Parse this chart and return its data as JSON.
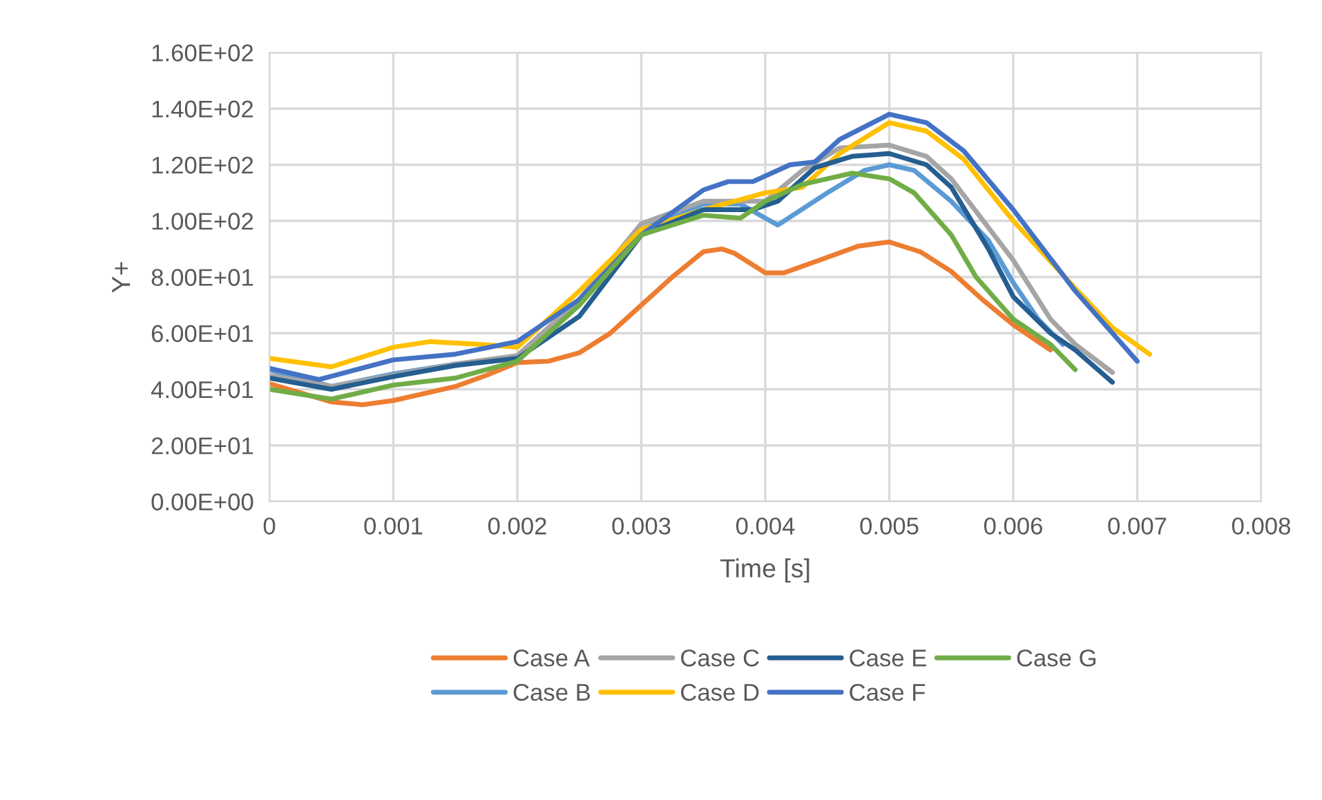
{
  "chart_data": {
    "type": "line",
    "xlabel": "Time [s]",
    "ylabel": "Y+",
    "xlim": [
      0,
      0.008
    ],
    "ylim": [
      0,
      160
    ],
    "xticks": [
      0,
      0.001,
      0.002,
      0.003,
      0.004,
      0.005,
      0.006,
      0.007,
      0.008
    ],
    "yticks": [
      {
        "value": 0,
        "label": "0.00E+00"
      },
      {
        "value": 20,
        "label": "2.00E+01"
      },
      {
        "value": 40,
        "label": "4.00E+01"
      },
      {
        "value": 60,
        "label": "6.00E+01"
      },
      {
        "value": 80,
        "label": "8.00E+01"
      },
      {
        "value": 100,
        "label": "1.00E+02"
      },
      {
        "value": 120,
        "label": "1.20E+02"
      },
      {
        "value": 140,
        "label": "1.40E+02"
      },
      {
        "value": 160,
        "label": "1.60E+02"
      }
    ],
    "grid": true,
    "legend": "bottom",
    "marker": "none",
    "line_style": "solid",
    "series": [
      {
        "name": "Case A",
        "color": "#ed7d31",
        "x": [
          0,
          0.0005,
          0.00075,
          0.001,
          0.00125,
          0.0015,
          0.00175,
          0.002,
          0.00225,
          0.0025,
          0.00275,
          0.003,
          0.00325,
          0.0035,
          0.00365,
          0.00375,
          0.004,
          0.00415,
          0.0045,
          0.00475,
          0.005,
          0.00525,
          0.0055,
          0.00575,
          0.006,
          0.0063
        ],
        "values": [
          42,
          35.5,
          34.5,
          36,
          38.5,
          41,
          45,
          49.5,
          50,
          53,
          60,
          70,
          80,
          89,
          90,
          88.5,
          81.5,
          81.5,
          87,
          91,
          92.5,
          89,
          82,
          72,
          63,
          54
        ]
      },
      {
        "name": "Case B",
        "color": "#5b9bd5",
        "x": [
          0,
          0.0005,
          0.001,
          0.0015,
          0.002,
          0.0025,
          0.003,
          0.0035,
          0.0038,
          0.004,
          0.0041,
          0.0045,
          0.0048,
          0.005,
          0.0052,
          0.0055,
          0.0058,
          0.006,
          0.0062,
          0.0064
        ],
        "values": [
          47,
          41,
          45.5,
          49,
          51,
          70,
          97,
          106,
          106,
          101,
          98.5,
          110,
          118,
          120,
          118,
          107,
          93,
          78,
          65,
          56
        ]
      },
      {
        "name": "Case C",
        "color": "#a5a5a5",
        "x": [
          0,
          0.0005,
          0.001,
          0.0015,
          0.002,
          0.0025,
          0.003,
          0.0035,
          0.004,
          0.0043,
          0.0046,
          0.005,
          0.0053,
          0.0055,
          0.006,
          0.0063,
          0.0065,
          0.0068
        ],
        "values": [
          45,
          41,
          45,
          49,
          52,
          72,
          99,
          107,
          107,
          118,
          126,
          127,
          123,
          115,
          86,
          65,
          56,
          46
        ]
      },
      {
        "name": "Case D",
        "color": "#ffc000",
        "x": [
          0,
          0.0005,
          0.001,
          0.0013,
          0.0017,
          0.002,
          0.0025,
          0.003,
          0.0035,
          0.004,
          0.0043,
          0.0046,
          0.005,
          0.0053,
          0.0056,
          0.006,
          0.0065,
          0.0068,
          0.0071
        ],
        "values": [
          51,
          48,
          55,
          57,
          56,
          55,
          75,
          97,
          104,
          110,
          112,
          124,
          135,
          132,
          122,
          100,
          76,
          62,
          52.5
        ]
      },
      {
        "name": "Case E",
        "color": "#255e91",
        "x": [
          0,
          0.0005,
          0.001,
          0.0015,
          0.002,
          0.0025,
          0.003,
          0.0035,
          0.0039,
          0.0041,
          0.0044,
          0.0047,
          0.005,
          0.0053,
          0.0055,
          0.0058,
          0.006,
          0.0063,
          0.0065,
          0.0068
        ],
        "values": [
          44,
          40,
          44.5,
          48.5,
          51,
          66,
          95,
          104,
          104,
          107,
          119,
          123,
          124,
          120,
          112,
          90,
          73,
          60,
          54,
          42.5
        ]
      },
      {
        "name": "Case F",
        "color": "#4472c4",
        "x": [
          0,
          0.0004,
          0.001,
          0.0015,
          0.002,
          0.0025,
          0.003,
          0.0035,
          0.0037,
          0.0039,
          0.0042,
          0.0044,
          0.0046,
          0.005,
          0.0053,
          0.0056,
          0.006,
          0.0065,
          0.007
        ],
        "values": [
          47.5,
          43.5,
          50.5,
          52.5,
          57,
          72,
          95,
          111,
          114,
          114,
          120,
          121,
          129,
          138,
          135,
          125,
          104,
          75,
          50
        ]
      },
      {
        "name": "Case G",
        "color": "#70ad47",
        "x": [
          0,
          0.0005,
          0.001,
          0.0015,
          0.002,
          0.0025,
          0.003,
          0.0035,
          0.0038,
          0.004,
          0.0043,
          0.0047,
          0.005,
          0.0052,
          0.0055,
          0.0057,
          0.006,
          0.0063,
          0.0065
        ],
        "values": [
          40,
          36.5,
          41.5,
          44,
          50,
          70,
          95,
          102,
          101,
          107,
          113,
          117,
          115,
          110,
          95,
          80,
          65,
          56,
          47
        ]
      }
    ]
  }
}
